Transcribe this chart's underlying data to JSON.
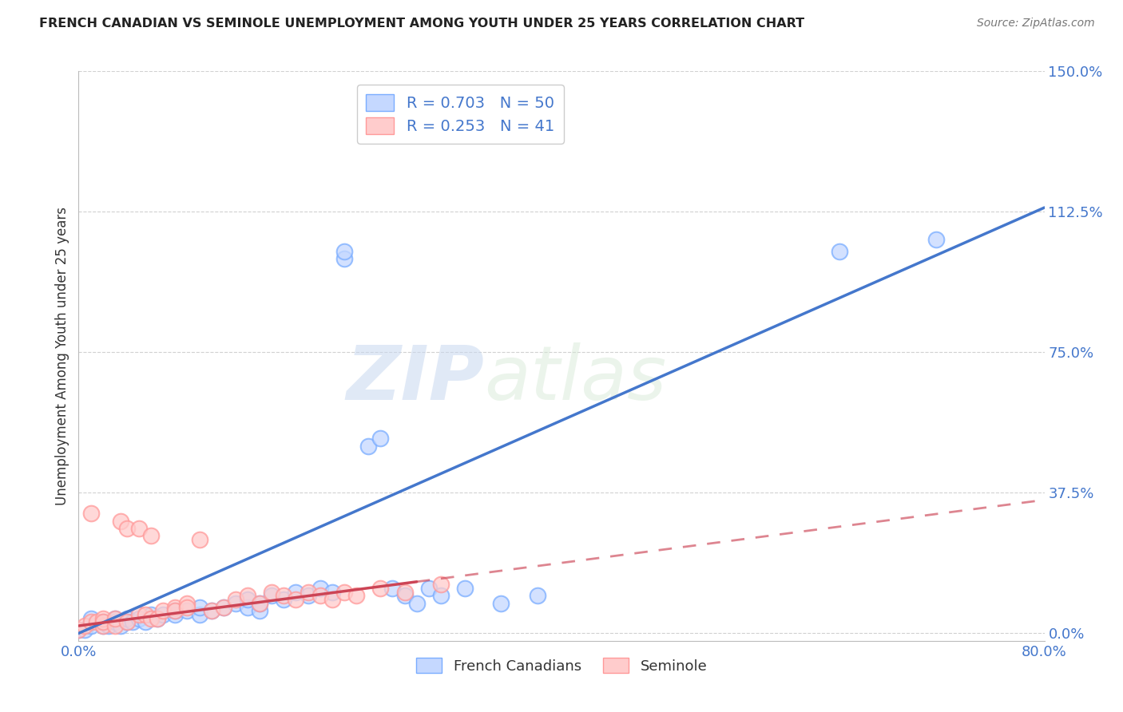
{
  "title": "FRENCH CANADIAN VS SEMINOLE UNEMPLOYMENT AMONG YOUTH UNDER 25 YEARS CORRELATION CHART",
  "source": "Source: ZipAtlas.com",
  "ylabel": "Unemployment Among Youth under 25 years",
  "yticks": [
    "0.0%",
    "37.5%",
    "75.0%",
    "112.5%",
    "150.0%"
  ],
  "ytick_vals": [
    0.0,
    0.375,
    0.75,
    1.125,
    1.5
  ],
  "xlim": [
    0.0,
    0.8
  ],
  "ylim": [
    -0.02,
    1.5
  ],
  "french_canadians": {
    "color": "#7aadff",
    "color_fill": "#c5d8ff",
    "R": 0.703,
    "N": 50,
    "line_color": "#4477cc",
    "line_slope": 1.42,
    "line_intercept": 0.0,
    "x": [
      0.0,
      0.005,
      0.01,
      0.01,
      0.02,
      0.02,
      0.025,
      0.03,
      0.03,
      0.035,
      0.04,
      0.04,
      0.045,
      0.05,
      0.055,
      0.06,
      0.065,
      0.07,
      0.08,
      0.08,
      0.09,
      0.1,
      0.1,
      0.11,
      0.12,
      0.13,
      0.14,
      0.14,
      0.15,
      0.15,
      0.16,
      0.17,
      0.18,
      0.19,
      0.2,
      0.21,
      0.22,
      0.22,
      0.24,
      0.25,
      0.26,
      0.27,
      0.28,
      0.29,
      0.3,
      0.32,
      0.35,
      0.38,
      0.63,
      0.71
    ],
    "y": [
      0.01,
      0.01,
      0.02,
      0.04,
      0.02,
      0.03,
      0.02,
      0.03,
      0.04,
      0.02,
      0.03,
      0.04,
      0.03,
      0.04,
      0.03,
      0.05,
      0.04,
      0.05,
      0.05,
      0.06,
      0.06,
      0.05,
      0.07,
      0.06,
      0.07,
      0.08,
      0.07,
      0.09,
      0.06,
      0.08,
      0.1,
      0.09,
      0.11,
      0.1,
      0.12,
      0.11,
      1.0,
      1.02,
      0.5,
      0.52,
      0.12,
      0.1,
      0.08,
      0.12,
      0.1,
      0.12,
      0.08,
      0.1,
      1.02,
      1.05
    ]
  },
  "seminole": {
    "color": "#ff9999",
    "color_fill": "#ffcccc",
    "R": 0.253,
    "N": 41,
    "line_color": "#cc4455",
    "line_solid_end": 0.28,
    "line_slope": 0.42,
    "line_intercept": 0.02,
    "x": [
      0.0,
      0.005,
      0.01,
      0.01,
      0.015,
      0.02,
      0.02,
      0.02,
      0.03,
      0.03,
      0.035,
      0.04,
      0.04,
      0.05,
      0.05,
      0.055,
      0.06,
      0.06,
      0.065,
      0.07,
      0.08,
      0.08,
      0.09,
      0.09,
      0.1,
      0.11,
      0.12,
      0.13,
      0.14,
      0.15,
      0.16,
      0.17,
      0.18,
      0.19,
      0.2,
      0.21,
      0.22,
      0.23,
      0.25,
      0.27,
      0.3
    ],
    "y": [
      0.01,
      0.02,
      0.03,
      0.32,
      0.03,
      0.02,
      0.04,
      0.03,
      0.02,
      0.04,
      0.3,
      0.03,
      0.28,
      0.05,
      0.28,
      0.05,
      0.04,
      0.26,
      0.04,
      0.06,
      0.07,
      0.06,
      0.08,
      0.07,
      0.25,
      0.06,
      0.07,
      0.09,
      0.1,
      0.08,
      0.11,
      0.1,
      0.09,
      0.11,
      0.1,
      0.09,
      0.11,
      0.1,
      0.12,
      0.11,
      0.13
    ]
  },
  "watermark_zip": "ZIP",
  "watermark_atlas": "atlas",
  "background_color": "#ffffff",
  "grid_color": "#cccccc",
  "legend_label_fc": "French Canadians",
  "legend_label_sem": "Seminole"
}
